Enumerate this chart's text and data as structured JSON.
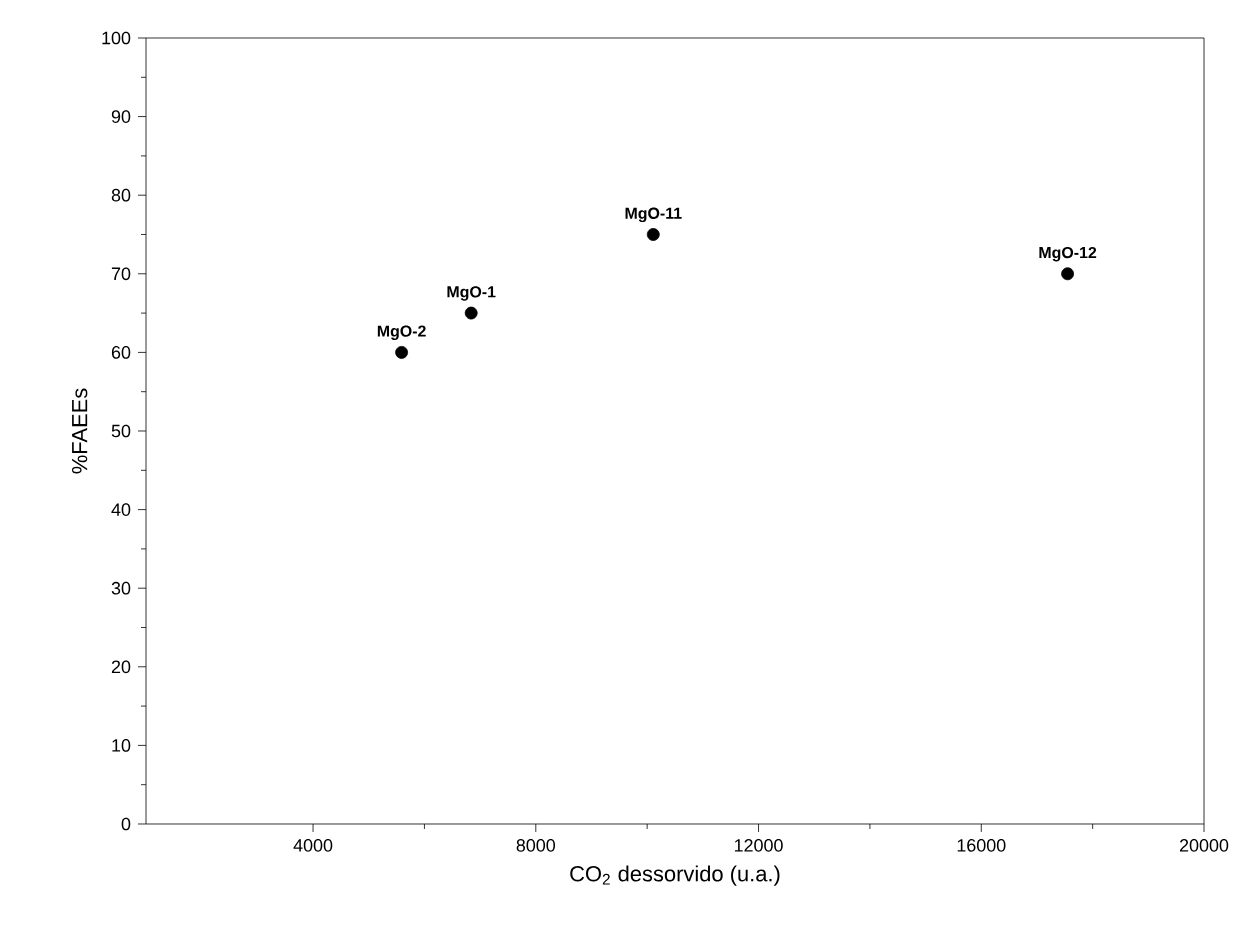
{
  "chart_data": {
    "type": "scatter",
    "xlabel": "CO$_{2}$ dessorvido (u.a.)",
    "ylabel": "%FAEEs",
    "x": [
      5590,
      6840,
      10110,
      17550
    ],
    "values": [
      60,
      65,
      75,
      70
    ],
    "color": "#000000",
    "marker": "circle",
    "xlim": [
      1000,
      20000
    ],
    "xticks": [
      4000,
      8000,
      12000,
      16000,
      20000
    ],
    "ylim": [
      0,
      100
    ],
    "yticks": [
      0,
      10,
      20,
      30,
      40,
      50,
      60,
      70,
      80,
      90,
      100
    ],
    "grid": false,
    "legend": false,
    "annotations": [
      {
        "text": "MgO-2",
        "x": 5590,
        "y": 60
      },
      {
        "text": "MgO-1",
        "x": 6840,
        "y": 65
      },
      {
        "text": "MgO-11",
        "x": 10110,
        "y": 75
      },
      {
        "text": "MgO-12",
        "x": 17550,
        "y": 70
      }
    ]
  }
}
